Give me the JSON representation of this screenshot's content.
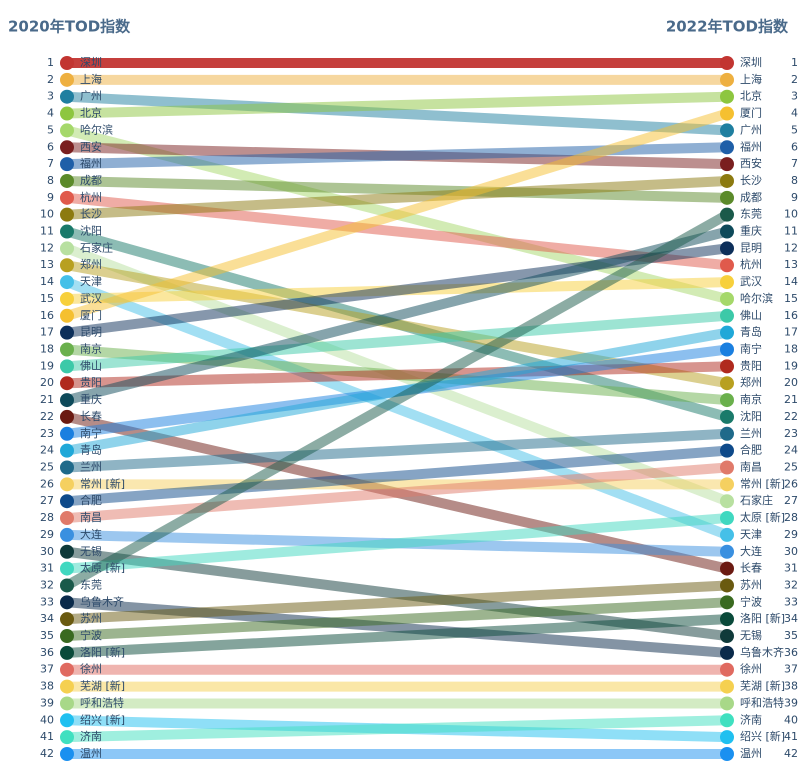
{
  "chart_data": {
    "type": "slope",
    "categories": [
      "2020年TOD指数",
      "2022年TOD指数"
    ],
    "ylim": [
      1,
      42
    ],
    "inverse": true,
    "yticks": [
      1,
      2,
      3,
      4,
      5,
      6,
      7,
      8,
      9,
      10,
      11,
      12,
      13,
      14,
      15,
      16,
      17,
      18,
      19,
      20,
      21,
      22,
      23,
      24,
      25,
      26,
      27,
      28,
      29,
      30,
      31,
      32,
      33,
      34,
      35,
      36,
      37,
      38,
      39,
      40,
      41,
      42
    ],
    "series": [
      {
        "name": "深圳",
        "color": "#c23531",
        "values": [
          1,
          1
        ]
      },
      {
        "name": "上海",
        "color": "#eeb040",
        "values": [
          2,
          2
        ]
      },
      {
        "name": "广州",
        "color": "#1f7fa0",
        "values": [
          3,
          5
        ]
      },
      {
        "name": "北京",
        "color": "#8dc63f",
        "values": [
          4,
          3
        ]
      },
      {
        "name": "哈尔滨",
        "color": "#a5d86a",
        "values": [
          5,
          15
        ]
      },
      {
        "name": "西安",
        "color": "#7a1f1f",
        "values": [
          6,
          7
        ]
      },
      {
        "name": "福州",
        "color": "#1f5fa8",
        "values": [
          7,
          6
        ]
      },
      {
        "name": "成都",
        "color": "#5b8a2a",
        "values": [
          8,
          9
        ]
      },
      {
        "name": "杭州",
        "color": "#e05a4c",
        "values": [
          9,
          13
        ]
      },
      {
        "name": "长沙",
        "color": "#8c7a10",
        "values": [
          10,
          8
        ]
      },
      {
        "name": "沈阳",
        "color": "#1a7a6a",
        "values": [
          11,
          22
        ]
      },
      {
        "name": "石家庄",
        "color": "#b8e0a0",
        "values": [
          12,
          27
        ]
      },
      {
        "name": "郑州",
        "color": "#b8a020",
        "values": [
          13,
          20
        ]
      },
      {
        "name": "天津",
        "color": "#45c0e8",
        "values": [
          14,
          29
        ]
      },
      {
        "name": "武汉",
        "color": "#f7d03c",
        "values": [
          15,
          14
        ]
      },
      {
        "name": "厦门",
        "color": "#f5c030",
        "values": [
          16,
          4
        ]
      },
      {
        "name": "昆明",
        "color": "#0d2f5a",
        "values": [
          17,
          12
        ]
      },
      {
        "name": "南京",
        "color": "#6ab04c",
        "values": [
          18,
          21
        ]
      },
      {
        "name": "佛山",
        "color": "#3cc9a8",
        "values": [
          19,
          16
        ]
      },
      {
        "name": "贵阳",
        "color": "#b02a1e",
        "values": [
          20,
          19
        ]
      },
      {
        "name": "重庆",
        "color": "#0e4a5a",
        "values": [
          21,
          11
        ]
      },
      {
        "name": "长春",
        "color": "#6b1a12",
        "values": [
          22,
          31
        ]
      },
      {
        "name": "南宁",
        "color": "#1a7fe0",
        "values": [
          23,
          18
        ]
      },
      {
        "name": "青岛",
        "color": "#20a8d8",
        "values": [
          24,
          17
        ]
      },
      {
        "name": "兰州",
        "color": "#1f6a8a",
        "values": [
          25,
          23
        ]
      },
      {
        "name": "常州 [新]",
        "color": "#f5d060",
        "values": [
          26,
          26
        ]
      },
      {
        "name": "合肥",
        "color": "#0e4a8a",
        "values": [
          27,
          24
        ]
      },
      {
        "name": "南昌",
        "color": "#e07a6a",
        "values": [
          28,
          25
        ]
      },
      {
        "name": "大连",
        "color": "#3a90e0",
        "values": [
          29,
          30
        ]
      },
      {
        "name": "无锡",
        "color": "#0f3a3a",
        "values": [
          30,
          35
        ]
      },
      {
        "name": "太原 [新]",
        "color": "#40d8c0",
        "values": [
          31,
          28
        ]
      },
      {
        "name": "东莞",
        "color": "#1a5a4a",
        "values": [
          32,
          10
        ]
      },
      {
        "name": "乌鲁木齐",
        "color": "#0a2a4a",
        "values": [
          33,
          36
        ]
      },
      {
        "name": "苏州",
        "color": "#6a5a10",
        "values": [
          34,
          32
        ]
      },
      {
        "name": "宁波",
        "color": "#3a6a20",
        "values": [
          35,
          33
        ]
      },
      {
        "name": "洛阳 [新]",
        "color": "#0a4a3a",
        "values": [
          36,
          34
        ]
      },
      {
        "name": "徐州",
        "color": "#e06a60",
        "values": [
          37,
          37
        ]
      },
      {
        "name": "芜湖 [新]",
        "color": "#f5d050",
        "values": [
          38,
          38
        ]
      },
      {
        "name": "呼和浩特",
        "color": "#a8d888",
        "values": [
          39,
          39
        ]
      },
      {
        "name": "绍兴 [新]",
        "color": "#20c0f0",
        "values": [
          40,
          41
        ]
      },
      {
        "name": "济南",
        "color": "#40e0c0",
        "values": [
          41,
          40
        ]
      },
      {
        "name": "温州",
        "color": "#1a90f0",
        "values": [
          42,
          42
        ]
      }
    ]
  }
}
